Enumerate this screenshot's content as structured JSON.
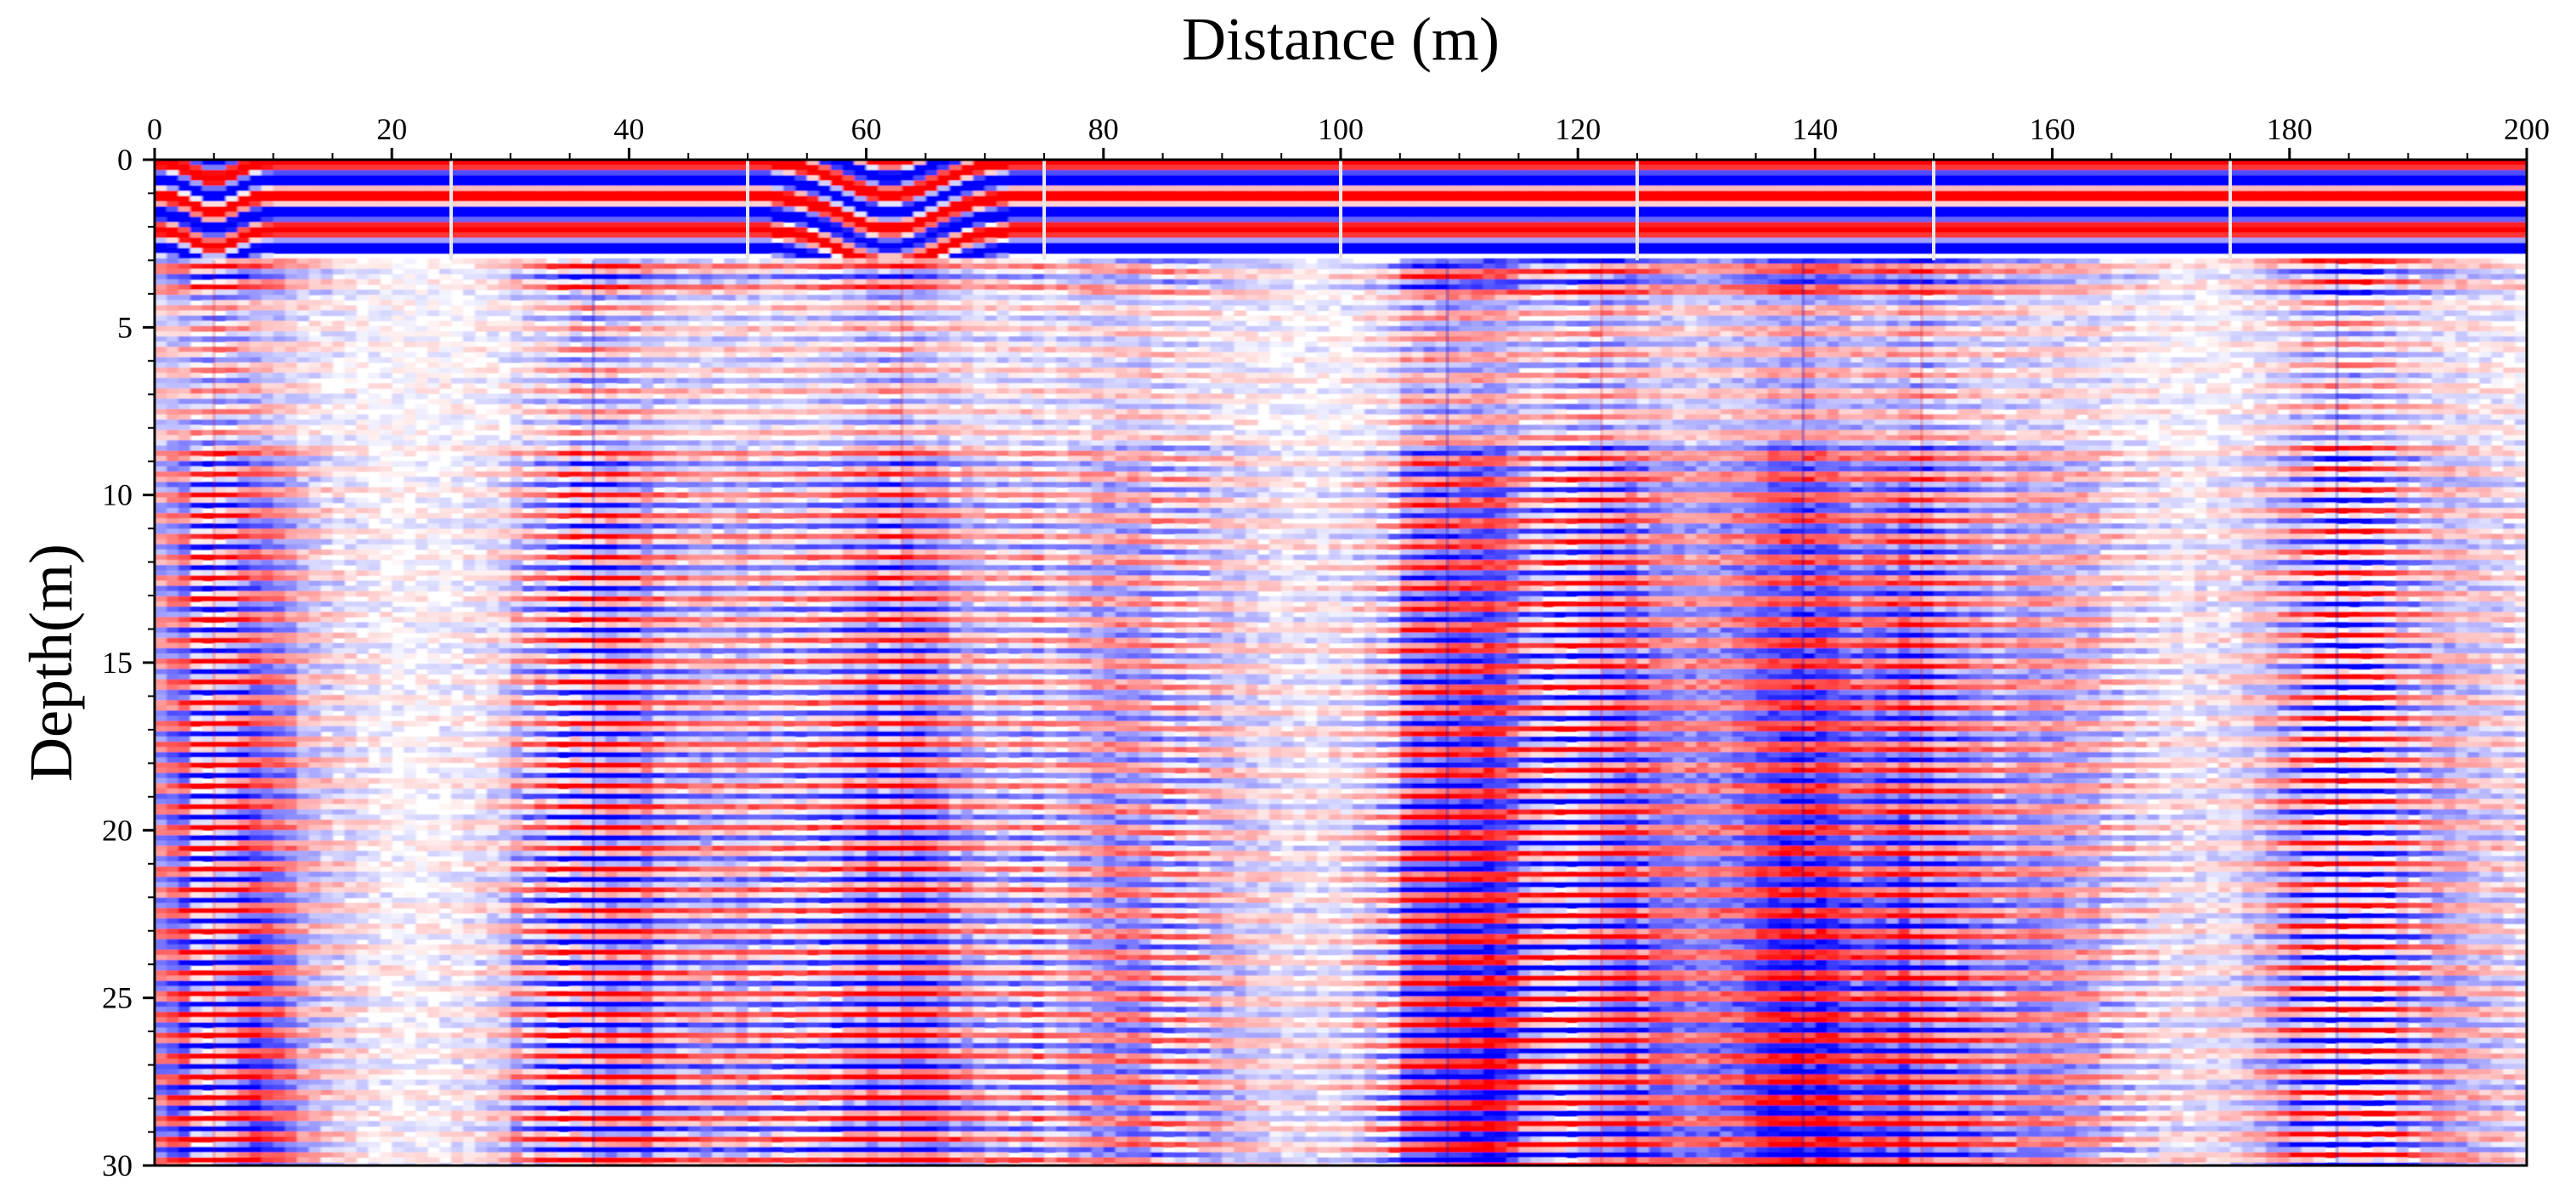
{
  "chart_data": {
    "type": "heatmap",
    "title": "",
    "xlabel": "Distance (m)",
    "ylabel": "Depth(m)",
    "xlim": [
      0,
      200
    ],
    "ylim": [
      0,
      30
    ],
    "x_ticks": [
      0,
      20,
      40,
      60,
      80,
      100,
      120,
      140,
      160,
      180,
      200
    ],
    "x_tick_labels": [
      "0",
      "20",
      "40",
      "60",
      "80",
      "100",
      "120",
      "140",
      "160",
      "180",
      "200"
    ],
    "y_ticks": [
      0,
      5,
      10,
      15,
      20,
      25,
      30
    ],
    "y_tick_labels": [
      "0",
      "5",
      "10",
      "15",
      "20",
      "25",
      "30"
    ],
    "x_axis_position": "top",
    "y_axis_direction": "downward",
    "colormap": {
      "negative": "#0000ff",
      "zero": "#ffffff",
      "positive": "#ff0000"
    },
    "segment_boundaries_m": [
      25,
      50,
      75,
      100,
      125,
      150,
      175
    ],
    "surface_bands_depth_m": [
      0.3,
      0.9,
      1.4,
      1.9,
      2.5
    ],
    "layer_spacing_m": 0.62,
    "strong_vertical_anomalies_m": [
      5,
      37,
      63,
      109,
      122,
      139,
      149,
      184
    ],
    "grid": false
  }
}
